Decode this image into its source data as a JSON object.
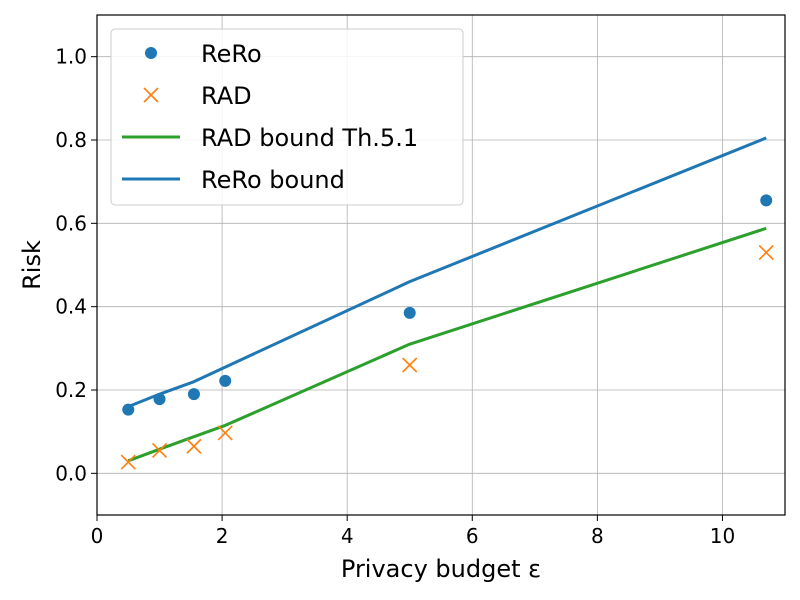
{
  "chart_data": {
    "type": "scatter",
    "xlabel": "Privacy budget ε",
    "ylabel": "Risk",
    "xlim": [
      0,
      11
    ],
    "ylim": [
      -0.1,
      1.1
    ],
    "xticks": [
      0,
      2,
      4,
      6,
      8,
      10
    ],
    "yticks": [
      0.0,
      0.2,
      0.4,
      0.6,
      0.8,
      1.0
    ],
    "xtick_labels": [
      "0",
      "2",
      "4",
      "6",
      "8",
      "10"
    ],
    "ytick_labels": [
      "0.0",
      "0.2",
      "0.4",
      "0.6",
      "0.8",
      "1.0"
    ],
    "grid": true,
    "legend_position": "top-left",
    "series": [
      {
        "name": "ReRo",
        "kind": "scatter",
        "marker": "circle",
        "color": "#1f77b4",
        "x": [
          0.5,
          1.0,
          1.55,
          2.05,
          5.0,
          10.7
        ],
        "y": [
          0.153,
          0.178,
          0.19,
          0.222,
          0.385,
          0.655
        ]
      },
      {
        "name": "RAD",
        "kind": "scatter",
        "marker": "x",
        "color": "#ff7f0e",
        "x": [
          0.5,
          1.0,
          1.55,
          2.05,
          5.0,
          10.7
        ],
        "y": [
          0.027,
          0.055,
          0.065,
          0.097,
          0.26,
          0.53
        ]
      },
      {
        "name": "RAD bound Th.5.1",
        "kind": "line",
        "color": "#2ca02c",
        "x": [
          0.5,
          1.0,
          1.55,
          2.05,
          5.0,
          10.7
        ],
        "y": [
          0.03,
          0.058,
          0.088,
          0.115,
          0.31,
          0.588
        ]
      },
      {
        "name": "ReRo bound",
        "kind": "line",
        "color": "#1f77b4",
        "x": [
          0.5,
          1.0,
          1.55,
          2.05,
          5.0,
          10.7
        ],
        "y": [
          0.16,
          0.19,
          0.22,
          0.255,
          0.46,
          0.805
        ]
      }
    ]
  }
}
